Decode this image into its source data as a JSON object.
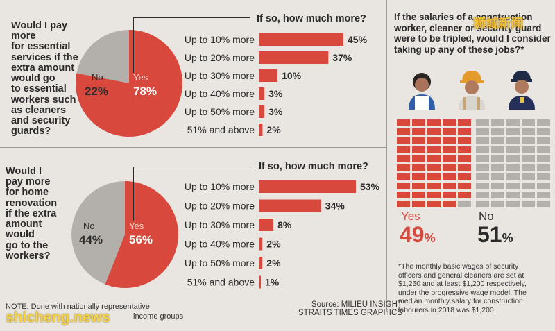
{
  "colors": {
    "red": "#d8483d",
    "grey": "#b3b0ab",
    "dark": "#2b2b2b",
    "bg": "#e9e6e1"
  },
  "panel1": {
    "question": [
      "Would I pay more",
      "for essential",
      "services if the",
      "extra amount",
      "would go",
      "to essential",
      "workers such",
      "as cleaners",
      "and security",
      "guards?"
    ],
    "sub_title": "If so, how much more?",
    "pie": {
      "no_label": "No",
      "no_pct": "22%",
      "yes_label": "Yes",
      "yes_pct": "78%"
    }
  },
  "panel2": {
    "question": [
      "Would I",
      "pay more",
      "for home",
      "renovation",
      "if the extra",
      "amount",
      "would",
      "go to the",
      "workers?"
    ],
    "sub_title": "If so, how much more?",
    "pie": {
      "no_label": "No",
      "no_pct": "44%",
      "yes_label": "Yes",
      "yes_pct": "56%"
    }
  },
  "panel3": {
    "question": [
      "If the salaries of a construction",
      "worker, cleaner or security guard",
      "were to be tripled, would I consider",
      "taking up any of these jobs?*"
    ],
    "yes_label": "Yes",
    "yes_pct": "49",
    "no_label": "No",
    "no_pct": "51",
    "pct_sign": "%",
    "footnote": [
      "*The monthly basic wages of security",
      "officers and general cleaners are set at",
      "$1,250 and at least $1,200 respectively,",
      "under the progressive wage model. The",
      "median monthly salary for construction",
      "labourers in 2018 was $1,200."
    ]
  },
  "footer": {
    "note": "NOTE: Done with nationally representative",
    "note2": "income groups",
    "source": "Source: MILIEU INSIGHT",
    "credit": "STRAITS TIMES GRAPHICS",
    "watermark_bottom": "shicheng.news",
    "watermark_top": "狮城新闻"
  },
  "chart_data": [
    {
      "type": "pie",
      "title": "Would I pay more for essential services if the extra amount would go to essential workers such as cleaners and security guards?",
      "labels": [
        "Yes",
        "No"
      ],
      "values": [
        78,
        22
      ]
    },
    {
      "type": "bar",
      "title": "If so, how much more?",
      "categories": [
        "Up to 10% more",
        "Up to 20% more",
        "Up to 30% more",
        "Up to 40% more",
        "Up to 50% more",
        "51% and above"
      ],
      "values": [
        45,
        37,
        10,
        3,
        3,
        2
      ],
      "value_labels": [
        "45%",
        "37%",
        "10%",
        "3%",
        "3%",
        "2%"
      ],
      "xlim": [
        0,
        45
      ]
    },
    {
      "type": "pie",
      "title": "Would I pay more for home renovation if the extra amount would go to the workers?",
      "labels": [
        "Yes",
        "No"
      ],
      "values": [
        56,
        44
      ]
    },
    {
      "type": "bar",
      "title": "If so, how much more?",
      "categories": [
        "Up to 10% more",
        "Up to 20% more",
        "Up to 30% more",
        "Up to 40% more",
        "Up to 50% more",
        "51% and above"
      ],
      "values": [
        53,
        34,
        8,
        2,
        2,
        1
      ],
      "value_labels": [
        "53%",
        "34%",
        "8%",
        "2%",
        "2%",
        "1%"
      ],
      "xlim": [
        0,
        53
      ]
    },
    {
      "type": "waffle",
      "title": "If the salaries of a construction worker, cleaner or security guard were to be tripled, would I consider taking up any of these jobs?",
      "labels": [
        "Yes",
        "No"
      ],
      "values": [
        49,
        51
      ]
    }
  ]
}
